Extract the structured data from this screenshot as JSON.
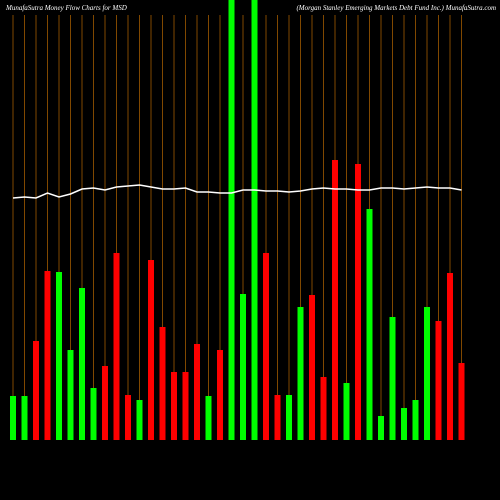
{
  "chart_data": {
    "type": "bar",
    "title": "MunafaSutra  Money Flow  Charts for MSD",
    "subtitle": "(Morgan  Stanley Emerging Markets Debt Fund  Inc.) MunafaSutra.com",
    "categories": [
      null,
      null,
      null,
      null,
      null,
      null,
      null,
      null,
      null,
      null,
      null,
      null,
      null,
      null,
      null,
      null,
      null,
      null,
      null,
      null,
      null,
      null,
      null,
      null,
      null,
      null,
      null,
      null,
      null,
      null,
      null,
      null,
      null,
      null,
      null,
      null,
      null,
      null,
      null,
      null
    ],
    "values": [
      44,
      44,
      99,
      169,
      168,
      90,
      152,
      52,
      74,
      187,
      45,
      40,
      180,
      113,
      68,
      68,
      96,
      44,
      90,
      440,
      146,
      440,
      187,
      45,
      45,
      133,
      145,
      63,
      280,
      57,
      276,
      231,
      24,
      123,
      32,
      40,
      133,
      119,
      167,
      77
    ],
    "colors": [
      "#00ff00",
      "#00ff00",
      "#ff0000",
      "#ff0000",
      "#00ff00",
      "#00ff00",
      "#00ff00",
      "#00ff00",
      "#ff0000",
      "#ff0000",
      "#ff0000",
      "#00ff00",
      "#ff0000",
      "#ff0000",
      "#ff0000",
      "#ff0000",
      "#ff0000",
      "#00ff00",
      "#ff0000",
      "#00ff00",
      "#00ff00",
      "#00ff00",
      "#ff0000",
      "#ff0000",
      "#00ff00",
      "#00ff00",
      "#ff0000",
      "#ff0000",
      "#ff0000",
      "#00ff00",
      "#ff0000",
      "#00ff00",
      "#00ff00",
      "#00ff00",
      "#00ff00",
      "#00ff00",
      "#00ff00",
      "#ff0000",
      "#ff0000",
      "#ff0000"
    ],
    "line": {
      "color": "#ffffff",
      "values": [
        242,
        243,
        242,
        247,
        243,
        246,
        251,
        252,
        250,
        253,
        254,
        255,
        253,
        251,
        251,
        252,
        248,
        248,
        247,
        247,
        250,
        250,
        249,
        249,
        248,
        249,
        251,
        252,
        251,
        251,
        250,
        250,
        252,
        252,
        251,
        252,
        253,
        252,
        252,
        250
      ]
    },
    "ylim": [
      0,
      440
    ]
  }
}
